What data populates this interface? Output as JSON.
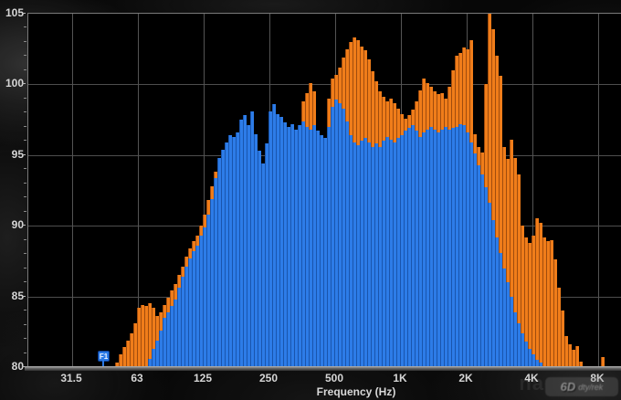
{
  "chart_data": {
    "type": "bar",
    "title": "",
    "xlabel": "Frequency (Hz)",
    "x_scale": "log-octave",
    "x_tick_labels": [
      "31.5",
      "63",
      "125",
      "250",
      "500",
      "1K",
      "2K",
      "4K",
      "8K"
    ],
    "x_tick_freqs_hz": [
      31.5,
      63,
      125,
      250,
      500,
      1000,
      2000,
      4000,
      8000
    ],
    "y_ticks": [
      80,
      85,
      90,
      95,
      100,
      105
    ],
    "ylim": [
      80,
      105
    ],
    "grid": true,
    "colors": {
      "background": "#000000",
      "grid": "#4e4e4e",
      "orange": "#f07d1a",
      "orange_edge": "#a04c0d",
      "blue": "#2d7ce8",
      "blue_edge": "#1955ad"
    },
    "series": [
      {
        "name": "orange-spectrum",
        "color": "#f07d1a",
        "values": [
          null,
          null,
          null,
          null,
          null,
          null,
          null,
          null,
          null,
          null,
          null,
          null,
          null,
          null,
          null,
          null,
          null,
          null,
          null,
          null,
          null,
          null,
          null,
          null,
          80.3,
          80.9,
          81.4,
          81.9,
          82.4,
          83.1,
          84.2,
          84.4,
          84.3,
          84.5,
          84.2,
          83.6,
          83.9,
          84.4,
          84.9,
          85.4,
          85.9,
          86.5,
          87.1,
          87.8,
          88.4,
          88.9,
          89.3,
          90.0,
          90.8,
          91.8,
          92.8,
          93.8,
          94.7,
          95.3,
          95.9,
          96.2,
          96.0,
          96.3,
          97.2,
          97.5,
          96.8,
          97.8,
          96.2,
          95.0,
          94.2,
          95.5,
          97.8,
          98.2,
          97.6,
          97.4,
          97.0,
          96.7,
          96.9,
          96.5,
          96.8,
          98.8,
          99.4,
          100.1,
          99.5,
          95.0,
          94.2,
          94.6,
          99.0,
          100.4,
          100.7,
          101.2,
          101.9,
          102.5,
          103.0,
          103.3,
          103.1,
          102.7,
          102.4,
          101.8,
          100.9,
          100.2,
          99.5,
          99.1,
          98.8,
          99.0,
          98.7,
          98.3,
          97.9,
          97.6,
          97.8,
          98.2,
          98.8,
          99.6,
          100.4,
          100.1,
          99.8,
          99.5,
          99.3,
          99.4,
          99.0,
          99.8,
          101.0,
          102.0,
          102.2,
          102.6,
          102.5,
          103.1,
          96.5,
          95.6,
          95.2,
          100.0,
          105.0,
          103.9,
          102.0,
          100.6,
          95.6,
          94.7,
          96.1,
          94.8,
          93.6,
          90.0,
          89.2,
          88.8,
          89.3,
          90.5,
          90.2,
          89.2,
          88.9,
          89.0,
          87.6,
          85.6,
          84.0,
          82.2,
          81.6,
          81.2,
          81.5,
          80.4,
          null,
          null,
          null,
          null,
          null,
          80.7,
          null,
          null,
          null,
          null,
          null
        ]
      },
      {
        "name": "blue-spectrum",
        "color": "#2d7ce8",
        "values": [
          null,
          null,
          null,
          null,
          null,
          null,
          null,
          null,
          null,
          null,
          null,
          null,
          null,
          null,
          null,
          null,
          null,
          null,
          null,
          null,
          null,
          null,
          null,
          null,
          null,
          null,
          null,
          null,
          null,
          null,
          null,
          null,
          null,
          80.6,
          81.3,
          81.9,
          82.6,
          83.5,
          83.9,
          84.3,
          84.8,
          85.6,
          86.4,
          87.1,
          87.7,
          88.2,
          88.6,
          89.3,
          89.9,
          90.8,
          91.9,
          93.4,
          94.8,
          95.4,
          95.9,
          96.4,
          96.3,
          96.6,
          97.5,
          97.8,
          97.1,
          98.1,
          96.5,
          95.3,
          94.4,
          95.8,
          98.1,
          98.6,
          97.9,
          97.7,
          97.3,
          97.0,
          97.2,
          96.8,
          97.1,
          97.4,
          97.0,
          96.8,
          97.1,
          96.7,
          96.4,
          96.2,
          97.0,
          98.4,
          98.9,
          98.7,
          98.3,
          97.4,
          96.4,
          95.9,
          95.7,
          96.0,
          96.2,
          95.9,
          95.6,
          95.8,
          95.6,
          96.0,
          96.3,
          96.1,
          95.9,
          96.2,
          96.4,
          96.7,
          96.9,
          97.1,
          96.7,
          96.3,
          96.6,
          96.8,
          97.0,
          96.8,
          96.6,
          96.8,
          97.0,
          96.8,
          96.9,
          97.0,
          97.2,
          97.1,
          96.6,
          95.9,
          95.1,
          94.3,
          93.6,
          92.7,
          91.6,
          90.4,
          89.2,
          88.1,
          87.0,
          86.0,
          85.0,
          83.9,
          83.1,
          82.4,
          81.8,
          81.3,
          80.9,
          80.5,
          80.3,
          null,
          null,
          null,
          null,
          null,
          null,
          null,
          null,
          null,
          null,
          null,
          null,
          null,
          null,
          null,
          null,
          null,
          null,
          null,
          null,
          null,
          null
        ]
      }
    ],
    "marker": {
      "label": "F1",
      "color": "#2a79e6"
    },
    "watermark": {
      "ghost": "na",
      "logo": "6D",
      "text": "dty/rek"
    }
  }
}
